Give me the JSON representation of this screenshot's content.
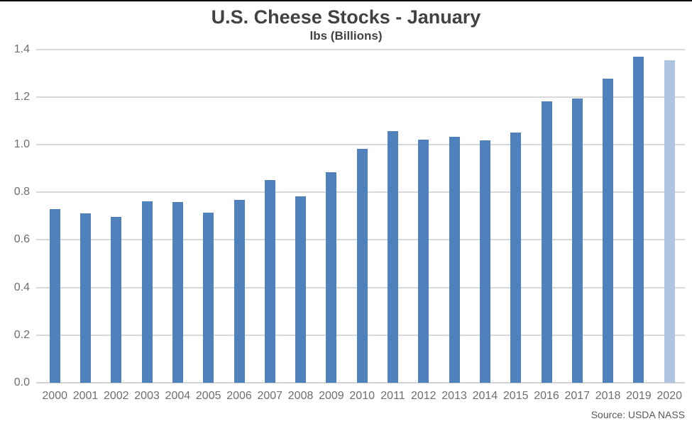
{
  "chart_data": {
    "type": "bar",
    "title": "U.S. Cheese Stocks - January",
    "subtitle": "lbs (Billions)",
    "source": "Source: USDA NASS",
    "categories": [
      "2000",
      "2001",
      "2002",
      "2003",
      "2004",
      "2005",
      "2006",
      "2007",
      "2008",
      "2009",
      "2010",
      "2011",
      "2012",
      "2013",
      "2014",
      "2015",
      "2016",
      "2017",
      "2018",
      "2019",
      "2020"
    ],
    "values": [
      0.73,
      0.712,
      0.695,
      0.762,
      0.758,
      0.715,
      0.767,
      0.85,
      0.783,
      0.885,
      0.981,
      1.055,
      1.022,
      1.032,
      1.018,
      1.049,
      1.181,
      1.194,
      1.278,
      1.37,
      1.355
    ],
    "highlight_last_bar": true,
    "bar_color": "#4F81BD",
    "highlight_bar_color": "#AEC6E2",
    "grid_color": "#D9D9D9",
    "ylim": [
      0.0,
      1.4
    ],
    "ytick_labels": [
      "0.0",
      "0.2",
      "0.4",
      "0.6",
      "0.8",
      "1.0",
      "1.2",
      "1.4"
    ],
    "grid": true,
    "legend": "none"
  }
}
